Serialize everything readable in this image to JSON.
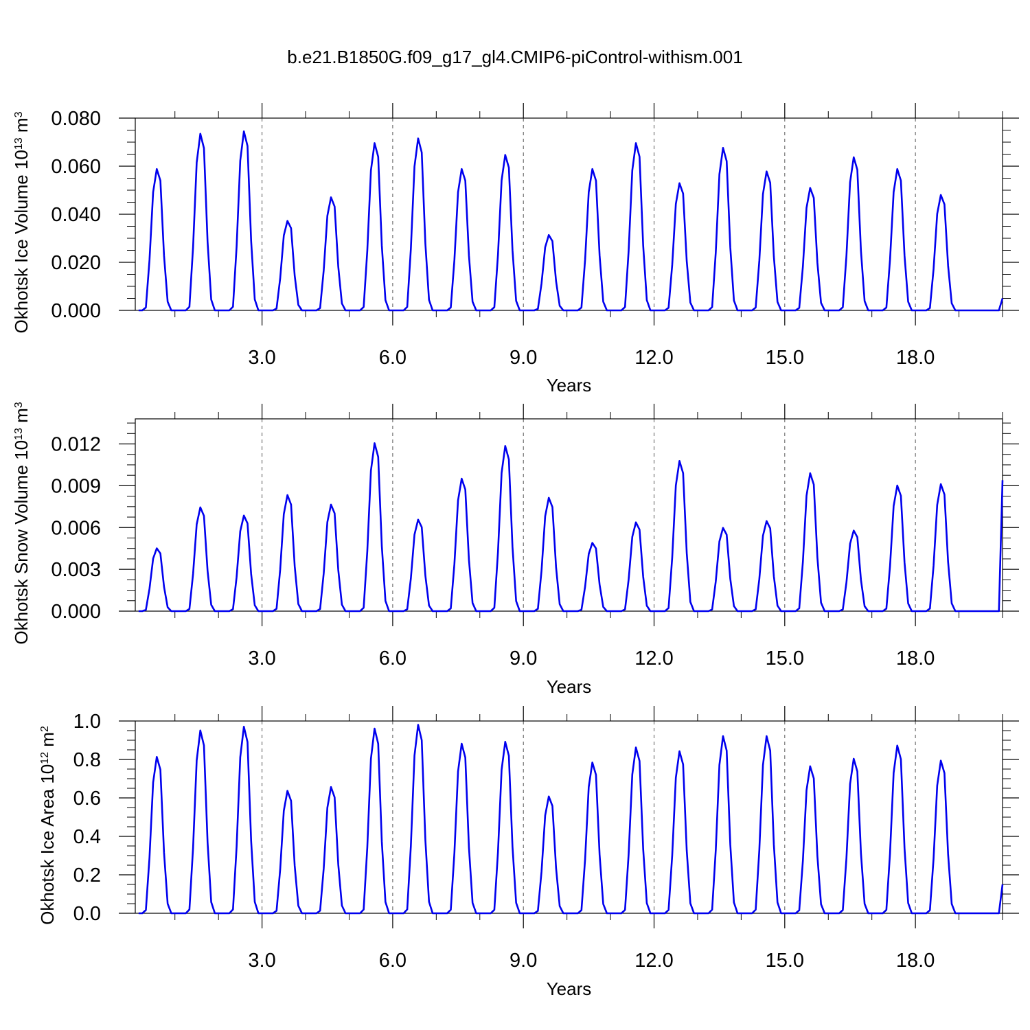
{
  "title": "b.e21.B1850G.f09_g17_gl4.CMIP6-piControl-withism.001",
  "colors": {
    "line": "#0000ee",
    "axis": "#000000",
    "grid": "#555555"
  },
  "chart_data": [
    {
      "type": "line",
      "ylabel": "Okhotsk Ice Volume",
      "yunit_base": "10",
      "yunit_exp": "13",
      "yunit_tail": " m",
      "yunit_tail_exp": "3",
      "xlabel": "Years",
      "xlim": [
        0.09,
        20.0
      ],
      "ylim": [
        0.0,
        0.08
      ],
      "xticks": [
        "3.0",
        "6.0",
        "9.0",
        "12.0",
        "15.0",
        "18.0"
      ],
      "xtick_values": [
        3,
        6,
        9,
        12,
        15,
        18
      ],
      "yticks": [
        "0.000",
        "0.020",
        "0.040",
        "0.060",
        "0.080"
      ],
      "ytick_values": [
        0,
        0.02,
        0.04,
        0.06,
        0.08
      ],
      "grid_x": true,
      "peaks": [
        0.06,
        0.075,
        0.076,
        0.038,
        0.048,
        0.071,
        0.073,
        0.06,
        0.066,
        0.032,
        0.06,
        0.071,
        0.054,
        0.069,
        0.059,
        0.052,
        0.065,
        0.06,
        0.049,
        0.005
      ]
    },
    {
      "type": "line",
      "ylabel": "Okhotsk Snow Volume",
      "yunit_base": "10",
      "yunit_exp": "13",
      "yunit_tail": " m",
      "yunit_tail_exp": "3",
      "xlabel": "Years",
      "xlim": [
        0.09,
        20.0
      ],
      "ylim": [
        0.0,
        0.0138
      ],
      "xticks": [
        "3.0",
        "6.0",
        "9.0",
        "12.0",
        "15.0",
        "18.0"
      ],
      "xtick_values": [
        3,
        6,
        9,
        12,
        15,
        18
      ],
      "yticks": [
        "0.000",
        "0.003",
        "0.006",
        "0.009",
        "0.012"
      ],
      "ytick_values": [
        0,
        0.003,
        0.006,
        0.009,
        0.012
      ],
      "grid_x": true,
      "peaks": [
        0.0046,
        0.0076,
        0.007,
        0.0085,
        0.0078,
        0.0123,
        0.0067,
        0.0097,
        0.0121,
        0.0083,
        0.005,
        0.0065,
        0.011,
        0.0061,
        0.0066,
        0.0101,
        0.0059,
        0.0092,
        0.0093,
        0.0094
      ]
    },
    {
      "type": "line",
      "ylabel": "Okhotsk Ice Area",
      "yunit_base": "10",
      "yunit_exp": "12",
      "yunit_tail": " m",
      "yunit_tail_exp": "2",
      "xlabel": "Years",
      "xlim": [
        0.09,
        20.0
      ],
      "ylim": [
        0.0,
        1.0
      ],
      "xticks": [
        "3.0",
        "6.0",
        "9.0",
        "12.0",
        "15.0",
        "18.0"
      ],
      "xtick_values": [
        3,
        6,
        9,
        12,
        15,
        18
      ],
      "yticks": [
        "0.0",
        "0.2",
        "0.4",
        "0.6",
        "0.8",
        "1.0"
      ],
      "ytick_values": [
        0,
        0.2,
        0.4,
        0.6,
        0.8,
        1.0
      ],
      "grid_x": true,
      "peaks": [
        0.83,
        0.97,
        0.99,
        0.65,
        0.67,
        0.98,
        1.0,
        0.9,
        0.91,
        0.62,
        0.8,
        0.88,
        0.86,
        0.94,
        0.94,
        0.78,
        0.82,
        0.89,
        0.81,
        0.15
      ]
    }
  ]
}
